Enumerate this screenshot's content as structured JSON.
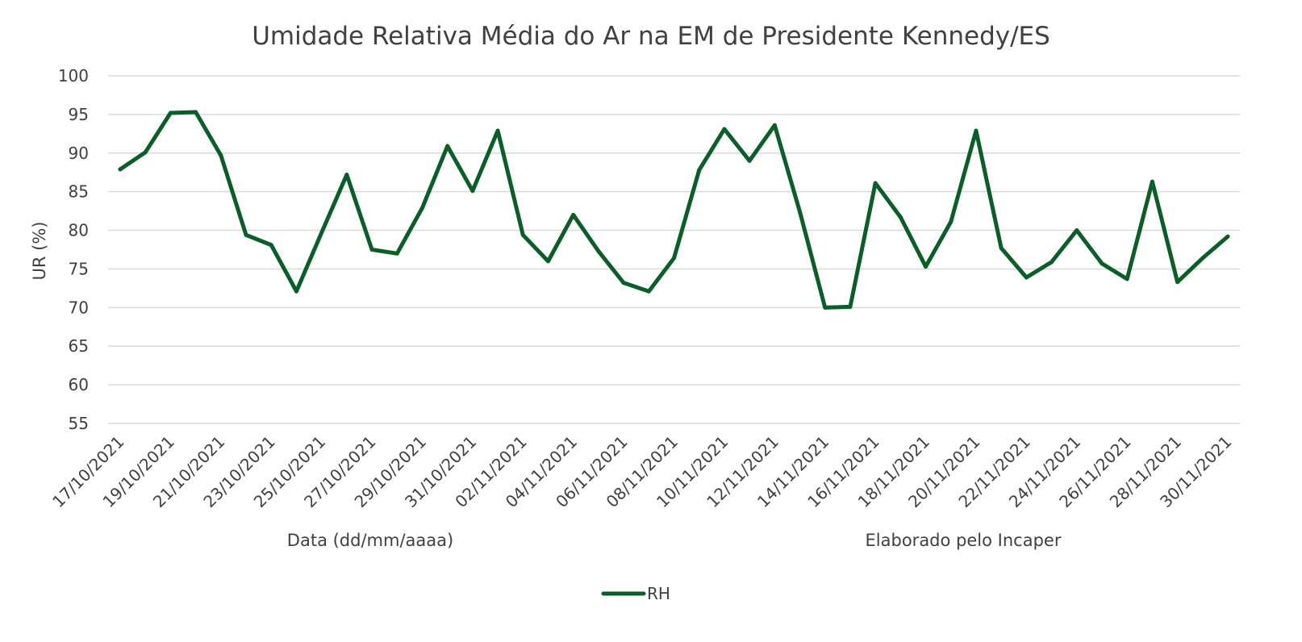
{
  "chart_data": {
    "type": "line",
    "title": "Umidade Relativa Média do Ar na EM de Presidente Kennedy/ES",
    "xlabel": "Data (dd/mm/aaaa)",
    "ylabel": "UR (%)",
    "note": "Elaborado pelo Incaper",
    "ylim": [
      55,
      100
    ],
    "yticks": [
      "100",
      "95",
      "90",
      "85",
      "80",
      "75",
      "70",
      "65",
      "60",
      "55"
    ],
    "grid": true,
    "legend_position": "bottom",
    "x_tick_labels": [
      "17/10/2021",
      "19/10/2021",
      "21/10/2021",
      "23/10/2021",
      "25/10/2021",
      "27/10/2021",
      "29/10/2021",
      "31/10/2021",
      "02/11/2021",
      "04/11/2021",
      "06/11/2021",
      "08/11/2021",
      "10/11/2021",
      "12/11/2021",
      "14/11/2021",
      "16/11/2021",
      "18/11/2021",
      "20/11/2021",
      "22/11/2021",
      "24/11/2021",
      "26/11/2021",
      "28/11/2021",
      "30/11/2021"
    ],
    "x": [
      "17/10/2021",
      "18/10/2021",
      "19/10/2021",
      "20/10/2021",
      "21/10/2021",
      "22/10/2021",
      "23/10/2021",
      "24/10/2021",
      "25/10/2021",
      "26/10/2021",
      "27/10/2021",
      "28/10/2021",
      "29/10/2021",
      "30/10/2021",
      "31/10/2021",
      "01/11/2021",
      "02/11/2021",
      "03/11/2021",
      "04/11/2021",
      "05/11/2021",
      "06/11/2021",
      "07/11/2021",
      "08/11/2021",
      "09/11/2021",
      "10/11/2021",
      "11/11/2021",
      "12/11/2021",
      "13/11/2021",
      "14/11/2021",
      "15/11/2021",
      "16/11/2021",
      "17/11/2021",
      "18/11/2021",
      "19/11/2021",
      "20/11/2021",
      "21/11/2021",
      "22/11/2021",
      "23/11/2021",
      "24/11/2021",
      "25/11/2021",
      "26/11/2021",
      "27/11/2021",
      "28/11/2021",
      "29/11/2021",
      "30/11/2021"
    ],
    "series": [
      {
        "name": "RH",
        "color": "#0b5e27",
        "values": [
          87.9,
          90.1,
          95.2,
          95.3,
          89.7,
          79.4,
          78.1,
          72.1,
          79.7,
          87.2,
          77.5,
          77.0,
          82.9,
          90.9,
          85.1,
          92.9,
          79.4,
          76.0,
          82.0,
          77.3,
          73.2,
          72.1,
          76.4,
          87.8,
          93.1,
          89.0,
          93.6,
          82.4,
          70.0,
          70.1,
          86.1,
          81.7,
          75.3,
          81.1,
          92.9,
          77.7,
          73.9,
          75.9,
          80.0,
          75.7,
          73.7,
          86.3,
          73.3,
          76.4,
          79.2
        ]
      }
    ]
  }
}
